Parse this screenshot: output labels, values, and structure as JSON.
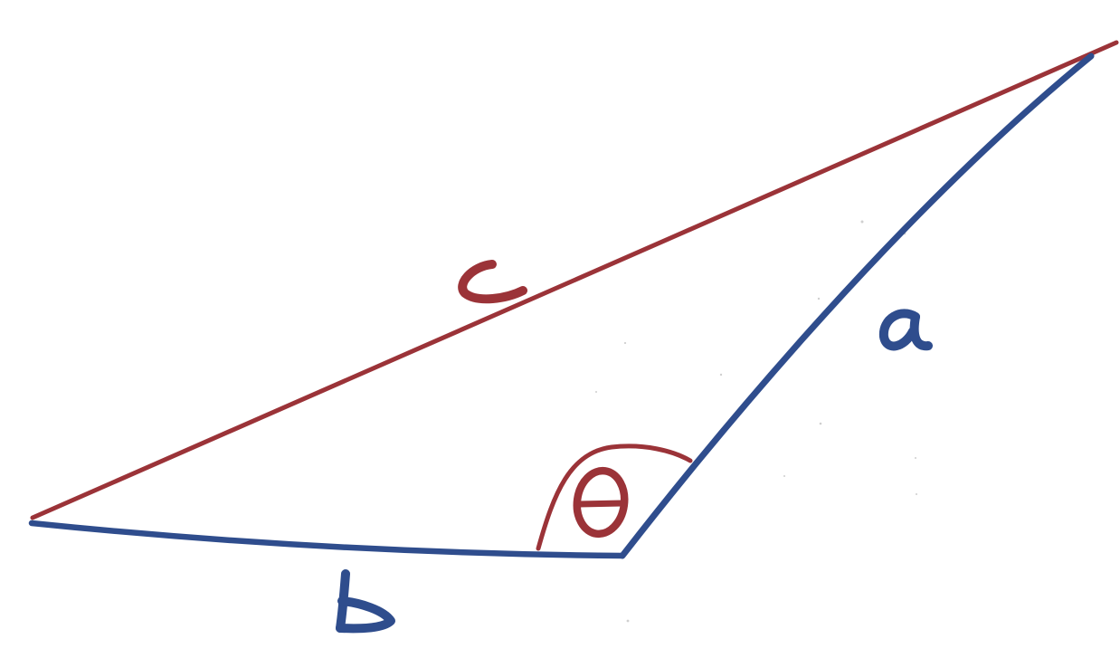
{
  "diagram": {
    "labels": {
      "side_c": "c",
      "side_a": "a",
      "side_b": "b",
      "angle": "θ"
    },
    "colors": {
      "red": "#9b3338",
      "blue": "#2f4d8d",
      "background": "#ffffff"
    }
  }
}
